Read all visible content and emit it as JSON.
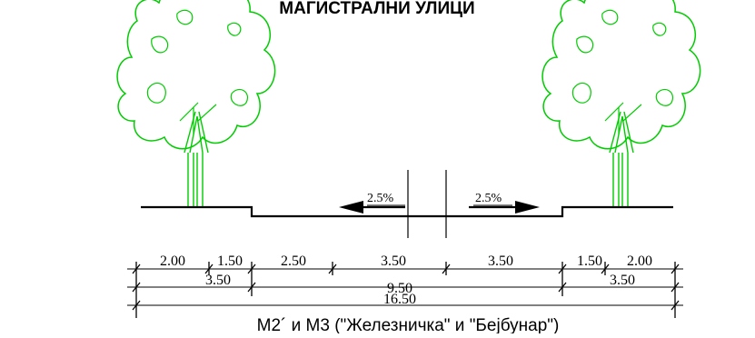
{
  "title": "МАГИСТРАЛНИ УЛИЦИ",
  "caption": "М2´ и М3  (\"Железничка\" и \"Бејбунар\")",
  "slopes": {
    "left": "2.5%",
    "right": "2.5%"
  },
  "dimensions": {
    "row1": [
      "2.00",
      "1.50",
      "2.50",
      "3.50",
      "3.50",
      "1.50",
      "2.00"
    ],
    "row2": [
      "3.50",
      "9.50",
      "3.50"
    ],
    "row3": "16.50"
  },
  "colors": {
    "trees": "#00cc00",
    "lines": "#000000"
  },
  "icons": {
    "tree_left": "tree-icon",
    "tree_right": "tree-icon"
  }
}
